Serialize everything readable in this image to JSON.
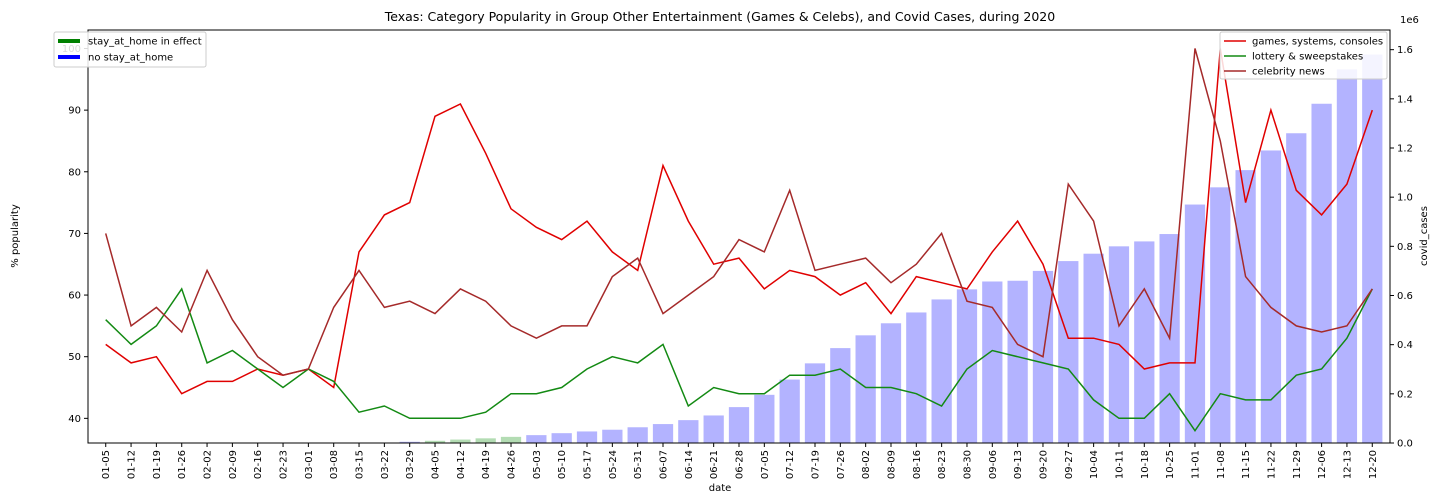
{
  "chart_data": {
    "type": "bar+line",
    "title": "Texas: Category Popularity in Group Other Entertainment (Games & Celebs), and Covid Cases, during 2020",
    "xlabel": "date",
    "ylabel": "% popularity",
    "y2label": "covid_cases",
    "y2_offset_text": "1e6",
    "ylim": [
      36,
      103
    ],
    "y2lim": [
      0,
      1.68
    ],
    "yticks": [
      "40",
      "50",
      "60",
      "70",
      "80",
      "90",
      "100"
    ],
    "y2ticks": [
      "0.0",
      "0.2",
      "0.4",
      "0.6",
      "0.8",
      "1.0",
      "1.2",
      "1.4",
      "1.6"
    ],
    "grid": false,
    "categories": [
      "01-05",
      "01-12",
      "01-19",
      "01-26",
      "02-02",
      "02-09",
      "02-16",
      "02-23",
      "03-01",
      "03-08",
      "03-15",
      "03-22",
      "03-29",
      "04-05",
      "04-12",
      "04-19",
      "04-26",
      "05-03",
      "05-10",
      "05-17",
      "05-24",
      "05-31",
      "06-07",
      "06-14",
      "06-21",
      "06-28",
      "07-05",
      "07-12",
      "07-19",
      "07-26",
      "08-02",
      "08-09",
      "08-16",
      "08-23",
      "08-30",
      "09-06",
      "09-13",
      "09-20",
      "09-27",
      "10-04",
      "10-11",
      "10-18",
      "10-25",
      "11-01",
      "11-08",
      "11-15",
      "11-22",
      "11-29",
      "12-06",
      "12-13",
      "12-20"
    ],
    "bar_series": {
      "name": "covid_cases (millions)",
      "values": [
        0,
        0,
        0,
        0,
        0,
        0,
        0,
        0,
        0,
        0.0003,
        0.001,
        0.002,
        0.005,
        0.009,
        0.014,
        0.019,
        0.025,
        0.032,
        0.04,
        0.047,
        0.054,
        0.064,
        0.077,
        0.093,
        0.112,
        0.146,
        0.196,
        0.258,
        0.324,
        0.386,
        0.438,
        0.487,
        0.531,
        0.584,
        0.625,
        0.657,
        0.66,
        0.7,
        0.74,
        0.77,
        0.8,
        0.82,
        0.85,
        0.97,
        1.04,
        1.11,
        1.19,
        1.26,
        1.38,
        1.52,
        1.58
      ],
      "colors": [
        "#b3b3ff",
        "#b3b3ff",
        "#b3b3ff",
        "#b3b3ff",
        "#b3b3ff",
        "#b3b3ff",
        "#b3b3ff",
        "#b3b3ff",
        "#b3b3ff",
        "#b3b3ff",
        "#b3b3ff",
        "#b3b3ff",
        "#b3b3ff",
        "#b3dcb3",
        "#b3dcb3",
        "#b3dcb3",
        "#b3dcb3",
        "#b3b3ff",
        "#b3b3ff",
        "#b3b3ff",
        "#b3b3ff",
        "#b3b3ff",
        "#b3b3ff",
        "#b3b3ff",
        "#b3b3ff",
        "#b3b3ff",
        "#b3b3ff",
        "#b3b3ff",
        "#b3b3ff",
        "#b3b3ff",
        "#b3b3ff",
        "#b3b3ff",
        "#b3b3ff",
        "#b3b3ff",
        "#b3b3ff",
        "#b3b3ff",
        "#b3b3ff",
        "#b3b3ff",
        "#b3b3ff",
        "#b3b3ff",
        "#b3b3ff",
        "#b3b3ff",
        "#b3b3ff",
        "#b3b3ff",
        "#b3b3ff",
        "#b3b3ff",
        "#b3b3ff",
        "#b3b3ff",
        "#b3b3ff",
        "#b3b3ff",
        "#b3b3ff"
      ]
    },
    "series": [
      {
        "name": "games, systems, consoles",
        "color": "#e00000",
        "values": [
          52,
          49,
          50,
          44,
          46,
          46,
          48,
          47,
          48,
          45,
          67,
          73,
          75,
          89,
          91,
          83,
          74,
          71,
          69,
          72,
          67,
          64,
          81,
          72,
          65,
          66,
          61,
          64,
          63,
          60,
          62,
          57,
          63,
          62,
          61,
          67,
          72,
          65,
          53,
          53,
          52,
          48,
          49,
          49,
          100,
          75,
          90,
          77,
          73,
          78,
          90
        ]
      },
      {
        "name": "lottery & sweepstakes",
        "color": "#138a13",
        "values": [
          56,
          52,
          55,
          61,
          49,
          51,
          48,
          45,
          48,
          46,
          41,
          42,
          40,
          40,
          40,
          41,
          44,
          44,
          45,
          48,
          50,
          49,
          52,
          42,
          45,
          44,
          44,
          47,
          47,
          48,
          45,
          45,
          44,
          42,
          48,
          51,
          50,
          49,
          48,
          43,
          40,
          40,
          44,
          38,
          44,
          43,
          43,
          47,
          48,
          53,
          61
        ]
      },
      {
        "name": "celebrity news",
        "color": "#a52a2a",
        "values": [
          70,
          55,
          58,
          54,
          64,
          56,
          50,
          47,
          48,
          58,
          64,
          58,
          59,
          57,
          61,
          59,
          55,
          53,
          55,
          55,
          63,
          66,
          57,
          60,
          63,
          69,
          67,
          77,
          64,
          65,
          66,
          62,
          65,
          70,
          59,
          58,
          52,
          50,
          78,
          72,
          55,
          61,
          53,
          100,
          85,
          63,
          58,
          55,
          54,
          55,
          61
        ]
      }
    ],
    "legend_left": [
      {
        "label": "stay_at_home in effect",
        "color": "#008000"
      },
      {
        "label": "no stay_at_home",
        "color": "#0000ff"
      }
    ]
  }
}
